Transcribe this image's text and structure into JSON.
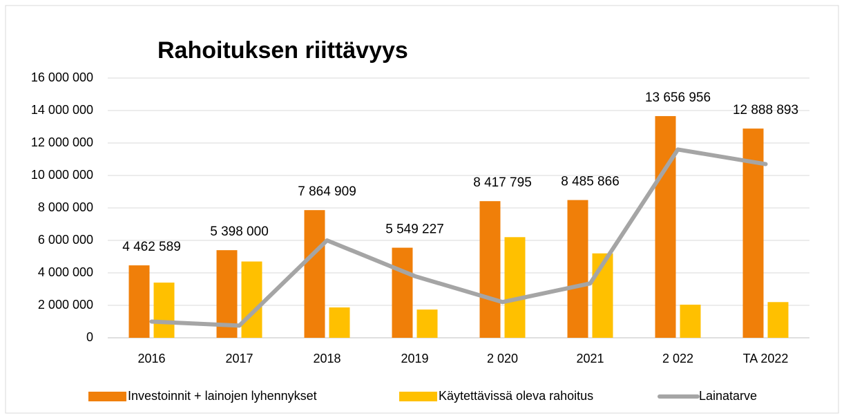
{
  "chart_data": {
    "type": "bar",
    "title": "Rahoituksen riittävyys",
    "categories": [
      "2016",
      "2017",
      "2018",
      "2019",
      "2 020",
      "2021",
      "2 022",
      "TA 2022"
    ],
    "series": [
      {
        "name": "Investoinnit + lainojen lyhennykset",
        "type": "bar",
        "color": "#f07f09",
        "values": [
          4462589,
          5398000,
          7864909,
          5549227,
          8417795,
          8485866,
          13656956,
          12888893
        ],
        "value_labels": [
          "4 462 589",
          "5 398 000",
          "7 864 909",
          "5 549 227",
          "8 417 795",
          "8 485 866",
          "13 656 956",
          "12 888 893"
        ]
      },
      {
        "name": "Käytettävissä oleva rahoitus",
        "type": "bar",
        "color": "#ffc000",
        "values": [
          3400000,
          4700000,
          1870000,
          1740000,
          6200000,
          5200000,
          2040000,
          2200000
        ]
      },
      {
        "name": "Lainatarve",
        "type": "line",
        "color": "#a5a5a5",
        "values": [
          1000000,
          750000,
          6000000,
          3800000,
          2200000,
          3350000,
          11600000,
          10700000
        ]
      }
    ],
    "ylim": [
      0,
      16000000
    ],
    "yticks": [
      0,
      {
        "value": 2000000,
        "label": "2 000 000"
      },
      {
        "value": 4000000,
        "label": "4 000 000"
      },
      {
        "value": 6000000,
        "label": "6 000 000"
      },
      {
        "value": 8000000,
        "label": "8 000 000"
      },
      {
        "value": 10000000,
        "label": "10 000 000"
      },
      {
        "value": 12000000,
        "label": "12 000 000"
      },
      {
        "value": 14000000,
        "label": "14 000 000"
      },
      {
        "value": 16000000,
        "label": "16 000 000"
      }
    ],
    "grid": true,
    "legend": "bottom"
  }
}
